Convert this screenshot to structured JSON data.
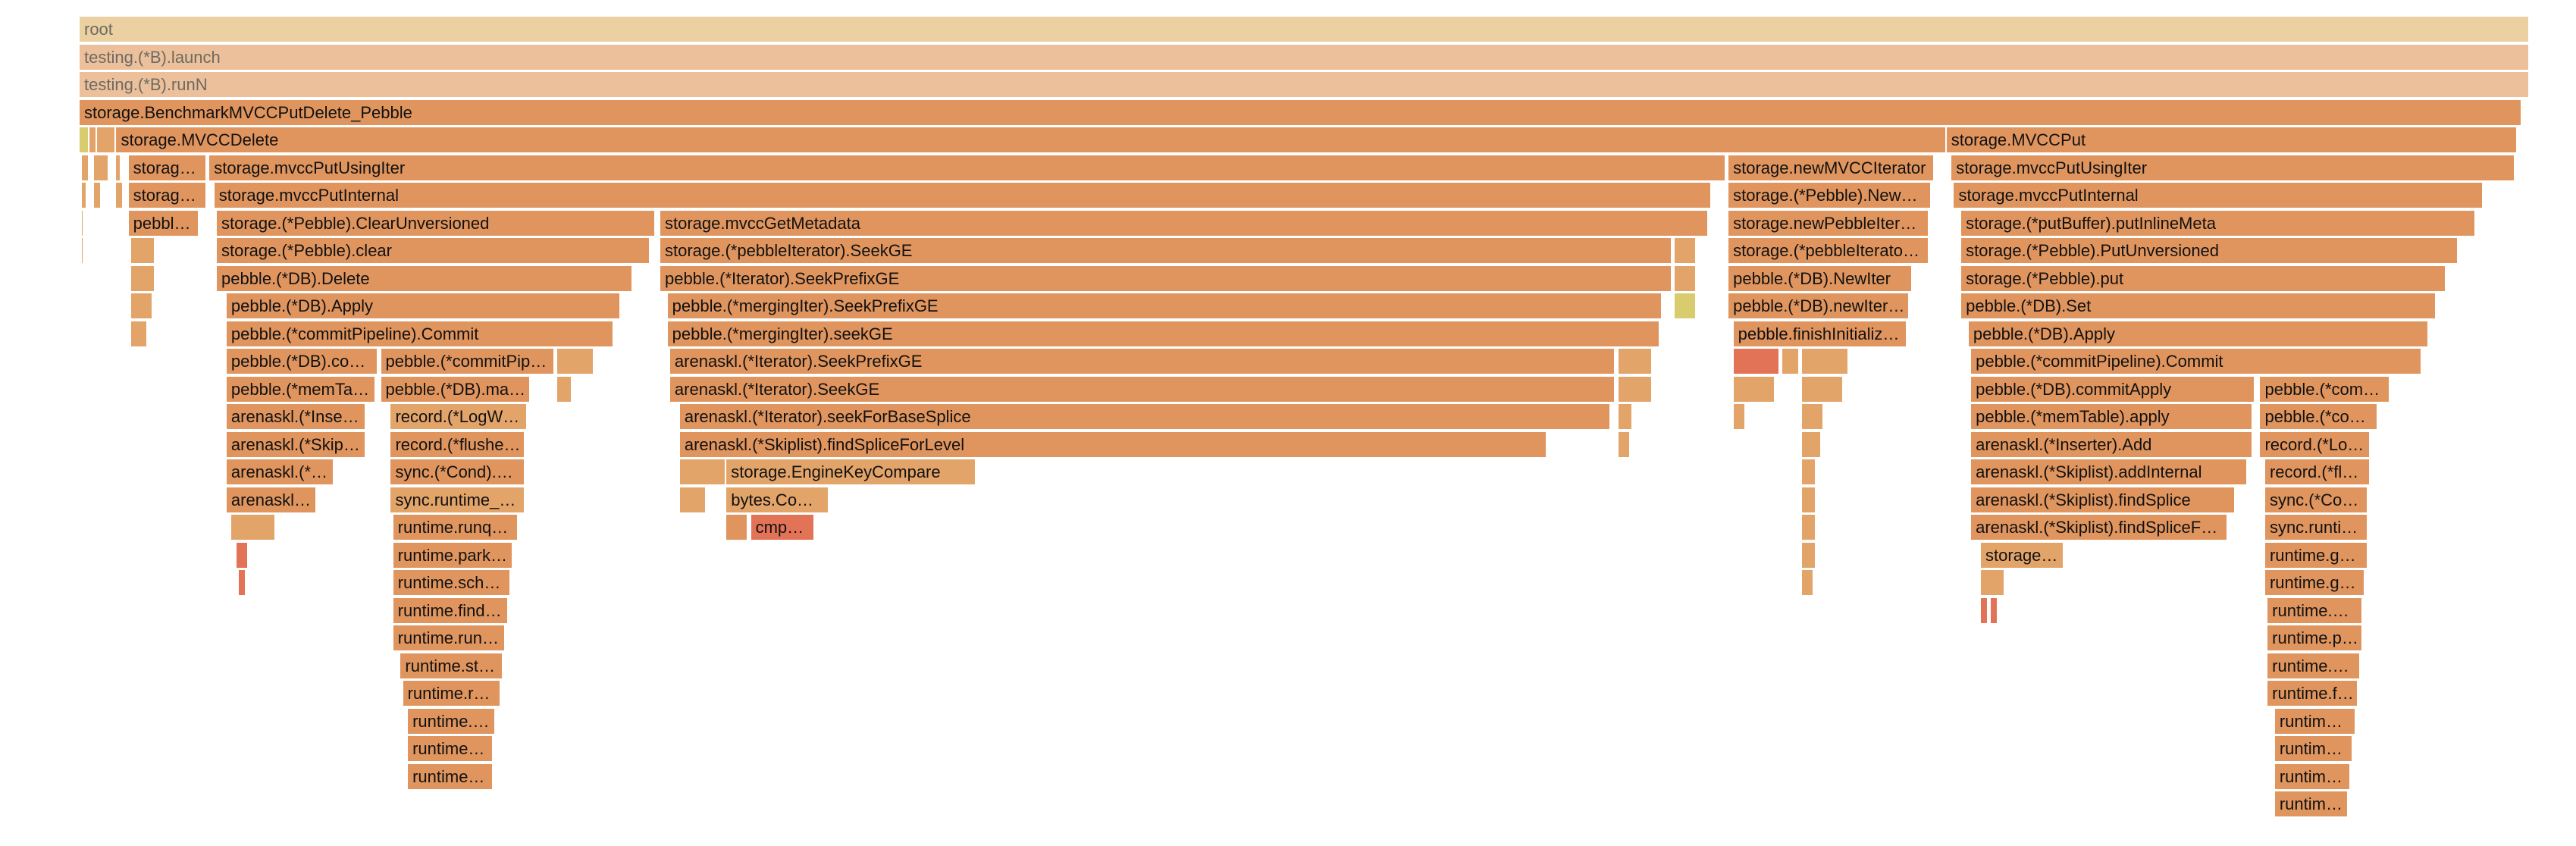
{
  "chart_data": {
    "type": "flame",
    "title": "",
    "total": 1000,
    "frames": [
      {
        "label": "root",
        "depth": 0,
        "start": 0,
        "end": 1000,
        "color": "#ebd0a1"
      },
      {
        "label": "testing.(*B).launch",
        "depth": 1,
        "start": 0,
        "end": 1000,
        "color": "#ebc09b"
      },
      {
        "label": "testing.(*B).runN",
        "depth": 2,
        "start": 0,
        "end": 1000,
        "color": "#ebc09b"
      },
      {
        "label": "storage.BenchmarkMVCCPutDelete_Pebble",
        "depth": 3,
        "start": 0,
        "end": 997,
        "color": "#e0955e"
      },
      {
        "label": "",
        "depth": 4,
        "start": 0,
        "end": 4,
        "color": "#d9cc6e"
      },
      {
        "label": "",
        "depth": 4,
        "start": 4,
        "end": 7,
        "color": "#e3a46a"
      },
      {
        "label": "",
        "depth": 4,
        "start": 7,
        "end": 15,
        "color": "#e3a46a"
      },
      {
        "label": "storage.MVCCDelete",
        "depth": 4,
        "start": 15,
        "end": 762,
        "color": "#e0955e"
      },
      {
        "label": "storage.MVCCPut",
        "depth": 4,
        "start": 762,
        "end": 995,
        "color": "#e0955e"
      },
      {
        "label": "",
        "depth": 5,
        "start": 1,
        "end": 4,
        "color": "#e3a46a"
      },
      {
        "label": "",
        "depth": 5,
        "start": 6,
        "end": 12,
        "color": "#e3a46a"
      },
      {
        "label": "",
        "depth": 5,
        "start": 15,
        "end": 17,
        "color": "#e3a46a"
      },
      {
        "label": "storage.MVCCPutUsingIter",
        "depth": 5,
        "start": 20,
        "end": 52,
        "color": "#e0955e"
      },
      {
        "label": "storage.mvccPutUsingIter",
        "depth": 5,
        "start": 53,
        "end": 672,
        "color": "#e0955e"
      },
      {
        "label": "storage.newMVCCIterator",
        "depth": 5,
        "start": 673,
        "end": 757,
        "color": "#e0955e"
      },
      {
        "label": "storage.mvccPutUsingIter",
        "depth": 5,
        "start": 764,
        "end": 994,
        "color": "#e0955e"
      },
      {
        "label": "",
        "depth": 6,
        "start": 1,
        "end": 3,
        "color": "#e3a46a"
      },
      {
        "label": "",
        "depth": 6,
        "start": 6,
        "end": 9,
        "color": "#e3a46a"
      },
      {
        "label": "",
        "depth": 6,
        "start": 15,
        "end": 18,
        "color": "#e3a46a"
      },
      {
        "label": "storage.mvccPutInternal",
        "depth": 6,
        "start": 20,
        "end": 52,
        "color": "#e0955e"
      },
      {
        "label": "storage.mvccPutInternal",
        "depth": 6,
        "start": 55,
        "end": 666,
        "color": "#e0955e"
      },
      {
        "label": "storage.(*Pebble).NewMVCCIterator",
        "depth": 6,
        "start": 673,
        "end": 756,
        "color": "#e0955e"
      },
      {
        "label": "storage.mvccPutInternal",
        "depth": 6,
        "start": 765,
        "end": 981,
        "color": "#e0955e"
      },
      {
        "label": "",
        "depth": 7,
        "start": 1,
        "end": 2,
        "color": "#e3a46a"
      },
      {
        "label": "pebble.(*DB).Delete",
        "depth": 7,
        "start": 20,
        "end": 49,
        "color": "#e0955e"
      },
      {
        "label": "storage.(*Pebble).ClearUnversioned",
        "depth": 7,
        "start": 56,
        "end": 235,
        "color": "#e0955e"
      },
      {
        "label": "storage.mvccGetMetadata",
        "depth": 7,
        "start": 237,
        "end": 665,
        "color": "#e0955e"
      },
      {
        "label": "storage.newPebbleIterator",
        "depth": 7,
        "start": 673,
        "end": 755,
        "color": "#e0955e"
      },
      {
        "label": "storage.(*putBuffer).putInlineMeta",
        "depth": 7,
        "start": 768,
        "end": 978,
        "color": "#e0955e"
      },
      {
        "label": "",
        "depth": 8,
        "start": 1,
        "end": 2,
        "color": "#e3a46a"
      },
      {
        "label": "",
        "depth": 8,
        "start": 21,
        "end": 31,
        "color": "#e3a46a"
      },
      {
        "label": "storage.(*Pebble).clear",
        "depth": 8,
        "start": 56,
        "end": 233,
        "color": "#e0955e"
      },
      {
        "label": "storage.(*pebbleIterator).SeekGE",
        "depth": 8,
        "start": 237,
        "end": 650,
        "color": "#e0955e"
      },
      {
        "label": "",
        "depth": 8,
        "start": 651,
        "end": 660,
        "color": "#e3a46a"
      },
      {
        "label": "storage.(*pebbleIterator).Next",
        "depth": 8,
        "start": 673,
        "end": 755,
        "color": "#e0955e"
      },
      {
        "label": "storage.(*Pebble).PutUnversioned",
        "depth": 8,
        "start": 768,
        "end": 971,
        "color": "#e0955e"
      },
      {
        "label": "",
        "depth": 9,
        "start": 21,
        "end": 31,
        "color": "#e3a46a"
      },
      {
        "label": "pebble.(*DB).Delete",
        "depth": 9,
        "start": 56,
        "end": 226,
        "color": "#e0955e"
      },
      {
        "label": "pebble.(*Iterator).SeekPrefixGE",
        "depth": 9,
        "start": 237,
        "end": 650,
        "color": "#e0955e"
      },
      {
        "label": "",
        "depth": 9,
        "start": 651,
        "end": 660,
        "color": "#e3a46a"
      },
      {
        "label": "pebble.(*DB).NewIter",
        "depth": 9,
        "start": 673,
        "end": 748,
        "color": "#e0955e"
      },
      {
        "label": "storage.(*Pebble).put",
        "depth": 9,
        "start": 768,
        "end": 966,
        "color": "#e0955e"
      },
      {
        "label": "",
        "depth": 10,
        "start": 21,
        "end": 30,
        "color": "#e3a46a"
      },
      {
        "label": "pebble.(*DB).Apply",
        "depth": 10,
        "start": 60,
        "end": 221,
        "color": "#e0955e"
      },
      {
        "label": "pebble.(*mergingIter).SeekPrefixGE",
        "depth": 10,
        "start": 240,
        "end": 646,
        "color": "#e0955e"
      },
      {
        "label": "",
        "depth": 10,
        "start": 651,
        "end": 660,
        "color": "#d9cc6e"
      },
      {
        "label": "pebble.(*DB).newIterInternal",
        "depth": 10,
        "start": 673,
        "end": 747,
        "color": "#e0955e"
      },
      {
        "label": "pebble.(*DB).Set",
        "depth": 10,
        "start": 768,
        "end": 962,
        "color": "#e0955e"
      },
      {
        "label": "",
        "depth": 11,
        "start": 21,
        "end": 28,
        "color": "#e3a46a"
      },
      {
        "label": "pebble.(*commitPipeline).Commit",
        "depth": 11,
        "start": 60,
        "end": 218,
        "color": "#e0955e"
      },
      {
        "label": "pebble.(*mergingIter).seekGE",
        "depth": 11,
        "start": 240,
        "end": 645,
        "color": "#e0955e"
      },
      {
        "label": "pebble.finishInitializingIter",
        "depth": 11,
        "start": 675,
        "end": 746,
        "color": "#e0955e"
      },
      {
        "label": "pebble.(*DB).Apply",
        "depth": 11,
        "start": 771,
        "end": 959,
        "color": "#e0955e"
      },
      {
        "label": "pebble.(*DB).commitWrite",
        "depth": 12,
        "start": 60,
        "end": 122,
        "color": "#e0955e"
      },
      {
        "label": "pebble.(*commitPipeline).prepare",
        "depth": 12,
        "start": 123,
        "end": 194,
        "color": "#e0955e"
      },
      {
        "label": "",
        "depth": 12,
        "start": 195,
        "end": 210,
        "color": "#e3a46a"
      },
      {
        "label": "arenaskl.(*Iterator).SeekPrefixGE",
        "depth": 12,
        "start": 241,
        "end": 627,
        "color": "#e0955e"
      },
      {
        "label": "",
        "depth": 12,
        "start": 628,
        "end": 642,
        "color": "#e3a46a"
      },
      {
        "label": "",
        "depth": 12,
        "start": 675,
        "end": 694,
        "color": "#e37356"
      },
      {
        "label": "",
        "depth": 12,
        "start": 695,
        "end": 702,
        "color": "#e3a46a"
      },
      {
        "label": "",
        "depth": 12,
        "start": 703,
        "end": 722,
        "color": "#e3a46a"
      },
      {
        "label": "pebble.(*commitPipeline).Commit",
        "depth": 12,
        "start": 772,
        "end": 956,
        "color": "#e0955e"
      },
      {
        "label": "pebble.(*memTable).apply",
        "depth": 13,
        "start": 60,
        "end": 121,
        "color": "#e0955e"
      },
      {
        "label": "pebble.(*DB).makeRoomForWrite",
        "depth": 13,
        "start": 123,
        "end": 184,
        "color": "#e0955e"
      },
      {
        "label": "",
        "depth": 13,
        "start": 195,
        "end": 201,
        "color": "#e3a46a"
      },
      {
        "label": "arenaskl.(*Iterator).SeekGE",
        "depth": 13,
        "start": 241,
        "end": 627,
        "color": "#e0955e"
      },
      {
        "label": "",
        "depth": 13,
        "start": 628,
        "end": 642,
        "color": "#e3a46a"
      },
      {
        "label": "",
        "depth": 13,
        "start": 675,
        "end": 692,
        "color": "#e3a46a"
      },
      {
        "label": "",
        "depth": 13,
        "start": 703,
        "end": 720,
        "color": "#e3a46a"
      },
      {
        "label": "pebble.(*DB).commitApply",
        "depth": 13,
        "start": 772,
        "end": 888,
        "color": "#e0955e"
      },
      {
        "label": "pebble.(*commitPipeline).publish",
        "depth": 13,
        "start": 890,
        "end": 943,
        "color": "#e0955e"
      },
      {
        "label": "arenaskl.(*Inserter).Add",
        "depth": 14,
        "start": 60,
        "end": 117,
        "color": "#e0955e"
      },
      {
        "label": "record.(*LogWriter).SyncRecord",
        "depth": 14,
        "start": 127,
        "end": 183,
        "color": "#e3a46a"
      },
      {
        "label": "arenaskl.(*Iterator).seekForBaseSplice",
        "depth": 14,
        "start": 245,
        "end": 625,
        "color": "#e0955e"
      },
      {
        "label": "",
        "depth": 14,
        "start": 628,
        "end": 634,
        "color": "#e3a46a"
      },
      {
        "label": "",
        "depth": 14,
        "start": 675,
        "end": 680,
        "color": "#e3a46a"
      },
      {
        "label": "",
        "depth": 14,
        "start": 703,
        "end": 712,
        "color": "#e3a46a"
      },
      {
        "label": "pebble.(*memTable).apply",
        "depth": 14,
        "start": 772,
        "end": 887,
        "color": "#e0955e"
      },
      {
        "label": "pebble.(*commitPipeline).prepare",
        "depth": 14,
        "start": 890,
        "end": 938,
        "color": "#e0955e"
      },
      {
        "label": "arenaskl.(*Skiplist).addInternal",
        "depth": 15,
        "start": 60,
        "end": 117,
        "color": "#e0955e"
      },
      {
        "label": "record.(*flusher).flush",
        "depth": 15,
        "start": 127,
        "end": 182,
        "color": "#e0955e"
      },
      {
        "label": "arenaskl.(*Skiplist).findSpliceForLevel",
        "depth": 15,
        "start": 245,
        "end": 599,
        "color": "#e0955e"
      },
      {
        "label": "",
        "depth": 15,
        "start": 628,
        "end": 633,
        "color": "#e3a46a"
      },
      {
        "label": "",
        "depth": 15,
        "start": 703,
        "end": 711,
        "color": "#e3a46a"
      },
      {
        "label": "arenaskl.(*Inserter).Add",
        "depth": 15,
        "start": 772,
        "end": 887,
        "color": "#e0955e"
      },
      {
        "label": "record.(*LogWriter).SyncRecord",
        "depth": 15,
        "start": 890,
        "end": 935,
        "color": "#e0955e"
      },
      {
        "label": "arenaskl.(*Skiplist).findSplice",
        "depth": 16,
        "start": 60,
        "end": 104,
        "color": "#e0955e"
      },
      {
        "label": "sync.(*Cond).Wait",
        "depth": 16,
        "start": 127,
        "end": 182,
        "color": "#e0955e"
      },
      {
        "label": "",
        "depth": 16,
        "start": 245,
        "end": 264,
        "color": "#e3a46a"
      },
      {
        "label": "storage.EngineKeyCompare",
        "depth": 16,
        "start": 264,
        "end": 366,
        "color": "#e3a46a"
      },
      {
        "label": "",
        "depth": 16,
        "start": 703,
        "end": 709,
        "color": "#e3a46a"
      },
      {
        "label": "arenaskl.(*Skiplist).addInternal",
        "depth": 16,
        "start": 772,
        "end": 885,
        "color": "#e0955e"
      },
      {
        "label": "record.(*flusher).flush",
        "depth": 16,
        "start": 892,
        "end": 935,
        "color": "#e0955e"
      },
      {
        "label": "arenaskl.(*Skiplist).findSpliceForLevel",
        "depth": 17,
        "start": 60,
        "end": 97,
        "color": "#e0955e"
      },
      {
        "label": "sync.runtime_notifyListWait",
        "depth": 17,
        "start": 127,
        "end": 182,
        "color": "#e3a46a"
      },
      {
        "label": "",
        "depth": 17,
        "start": 245,
        "end": 256,
        "color": "#e3a46a"
      },
      {
        "label": "bytes.Compare",
        "depth": 17,
        "start": 264,
        "end": 306,
        "color": "#e3a46a"
      },
      {
        "label": "",
        "depth": 17,
        "start": 703,
        "end": 709,
        "color": "#e3a46a"
      },
      {
        "label": "arenaskl.(*Skiplist).findSplice",
        "depth": 17,
        "start": 772,
        "end": 880,
        "color": "#e0955e"
      },
      {
        "label": "sync.(*Cond).Wait",
        "depth": 17,
        "start": 892,
        "end": 934,
        "color": "#e0955e"
      },
      {
        "label": "",
        "depth": 18,
        "start": 62,
        "end": 80,
        "color": "#e3a46a"
      },
      {
        "label": "runtime.runqgrab",
        "depth": 18,
        "start": 128,
        "end": 179,
        "color": "#e0955e"
      },
      {
        "label": "",
        "depth": 18,
        "start": 264,
        "end": 273,
        "color": "#e0955e"
      },
      {
        "label": "cmpbody",
        "depth": 18,
        "start": 274,
        "end": 300,
        "color": "#e37356"
      },
      {
        "label": "",
        "depth": 18,
        "start": 703,
        "end": 709,
        "color": "#e3a46a"
      },
      {
        "label": "arenaskl.(*Skiplist).findSpliceForLevel",
        "depth": 18,
        "start": 772,
        "end": 877,
        "color": "#e0955e"
      },
      {
        "label": "sync.runtime_notifyListWait",
        "depth": 18,
        "start": 892,
        "end": 934,
        "color": "#e0955e"
      },
      {
        "label": "",
        "depth": 19,
        "start": 64,
        "end": 69,
        "color": "#e37356"
      },
      {
        "label": "runtime.park_m",
        "depth": 19,
        "start": 128,
        "end": 177,
        "color": "#e0955e"
      },
      {
        "label": "",
        "depth": 19,
        "start": 703,
        "end": 709,
        "color": "#e3a46a"
      },
      {
        "label": "storage.EngineKeyCompare",
        "depth": 19,
        "start": 776,
        "end": 810,
        "color": "#e3a46a"
      },
      {
        "label": "runtime.goparkunlock",
        "depth": 19,
        "start": 892,
        "end": 934,
        "color": "#e0955e"
      },
      {
        "label": "",
        "depth": 20,
        "start": 65,
        "end": 68,
        "color": "#e37356"
      },
      {
        "label": "runtime.schedule",
        "depth": 20,
        "start": 128,
        "end": 176,
        "color": "#e0955e"
      },
      {
        "label": "",
        "depth": 20,
        "start": 703,
        "end": 708,
        "color": "#e3a46a"
      },
      {
        "label": "",
        "depth": 20,
        "start": 776,
        "end": 786,
        "color": "#e3a46a"
      },
      {
        "label": "runtime.gopark",
        "depth": 20,
        "start": 892,
        "end": 933,
        "color": "#e0955e"
      },
      {
        "label": "runtime.findrunnable",
        "depth": 21,
        "start": 128,
        "end": 175,
        "color": "#e0955e"
      },
      {
        "label": "",
        "depth": 21,
        "start": 776,
        "end": 779,
        "color": "#e37356"
      },
      {
        "label": "",
        "depth": 21,
        "start": 780,
        "end": 783,
        "color": "#e37356"
      },
      {
        "label": "runtime.mcall",
        "depth": 21,
        "start": 893,
        "end": 932,
        "color": "#e0955e"
      },
      {
        "label": "runtime.runqsteal",
        "depth": 22,
        "start": 128,
        "end": 174,
        "color": "#e0955e"
      },
      {
        "label": "runtime.park_m",
        "depth": 22,
        "start": 893,
        "end": 932,
        "color": "#e0955e"
      },
      {
        "label": "runtime.stealWork",
        "depth": 23,
        "start": 131,
        "end": 173,
        "color": "#e0955e"
      },
      {
        "label": "runtime.schedule",
        "depth": 23,
        "start": 893,
        "end": 931,
        "color": "#e0955e"
      },
      {
        "label": "runtime.runqgrab",
        "depth": 24,
        "start": 132,
        "end": 172,
        "color": "#e0955e"
      },
      {
        "label": "runtime.findrunnable",
        "depth": 24,
        "start": 893,
        "end": 930,
        "color": "#e0955e"
      },
      {
        "label": "runtime.usleep",
        "depth": 25,
        "start": 134,
        "end": 170,
        "color": "#e0955e"
      },
      {
        "label": "runtime.runqsteal",
        "depth": 25,
        "start": 896,
        "end": 929,
        "color": "#e0955e"
      },
      {
        "label": "runtime.nanotime",
        "depth": 26,
        "start": 134,
        "end": 169,
        "color": "#e0955e"
      },
      {
        "label": "runtime.stealWork",
        "depth": 26,
        "start": 896,
        "end": 928,
        "color": "#e0955e"
      },
      {
        "label": "runtime.walltime",
        "depth": 27,
        "start": 134,
        "end": 169,
        "color": "#e0955e"
      },
      {
        "label": "runtime.runqgrab",
        "depth": 27,
        "start": 896,
        "end": 927,
        "color": "#e0955e"
      },
      {
        "label": "runtime.usleep",
        "depth": 28,
        "start": 896,
        "end": 926,
        "color": "#e0955e"
      }
    ]
  }
}
